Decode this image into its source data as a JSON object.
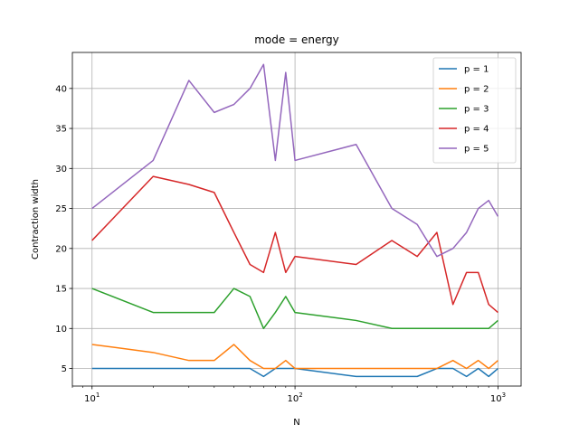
{
  "chart_data": {
    "type": "line",
    "title": "mode = energy",
    "xlabel": "N",
    "ylabel": "Contraction width",
    "xscale": "log",
    "xlim": [
      8,
      1300
    ],
    "ylim": [
      2.8,
      44.5
    ],
    "grid": true,
    "legend_position": "top-right",
    "x_ticks": [
      {
        "value": 10,
        "base": "10",
        "exp": "1"
      },
      {
        "value": 100,
        "base": "10",
        "exp": "2"
      },
      {
        "value": 1000,
        "base": "10",
        "exp": "3"
      }
    ],
    "y_ticks": [
      5,
      10,
      15,
      20,
      25,
      30,
      35,
      40
    ],
    "x": [
      10,
      20,
      30,
      40,
      50,
      60,
      70,
      80,
      90,
      100,
      200,
      300,
      400,
      500,
      600,
      700,
      800,
      900,
      1000
    ],
    "series": [
      {
        "name": "p = 1",
        "color": "#1f77b4",
        "values": [
          5,
          5,
          5,
          5,
          5,
          5,
          4,
          5,
          5,
          5,
          4,
          4,
          4,
          5,
          5,
          4,
          5,
          4,
          5
        ]
      },
      {
        "name": "p = 2",
        "color": "#ff7f0e",
        "values": [
          8,
          7,
          6,
          6,
          8,
          6,
          5,
          5,
          6,
          5,
          5,
          5,
          5,
          5,
          6,
          5,
          6,
          5,
          6
        ]
      },
      {
        "name": "p = 3",
        "color": "#2ca02c",
        "values": [
          15,
          12,
          12,
          12,
          15,
          14,
          10,
          12,
          14,
          12,
          11,
          10,
          10,
          10,
          10,
          10,
          10,
          10,
          11
        ]
      },
      {
        "name": "p = 4",
        "color": "#d62728",
        "values": [
          21,
          29,
          28,
          27,
          22,
          18,
          17,
          22,
          17,
          19,
          18,
          21,
          19,
          22,
          13,
          17,
          17,
          13,
          12
        ]
      },
      {
        "name": "p = 5",
        "color": "#9467bd",
        "values": [
          25,
          31,
          41,
          37,
          38,
          40,
          43,
          31,
          42,
          31,
          33,
          25,
          23,
          19,
          20,
          22,
          25,
          26,
          24
        ]
      }
    ]
  }
}
